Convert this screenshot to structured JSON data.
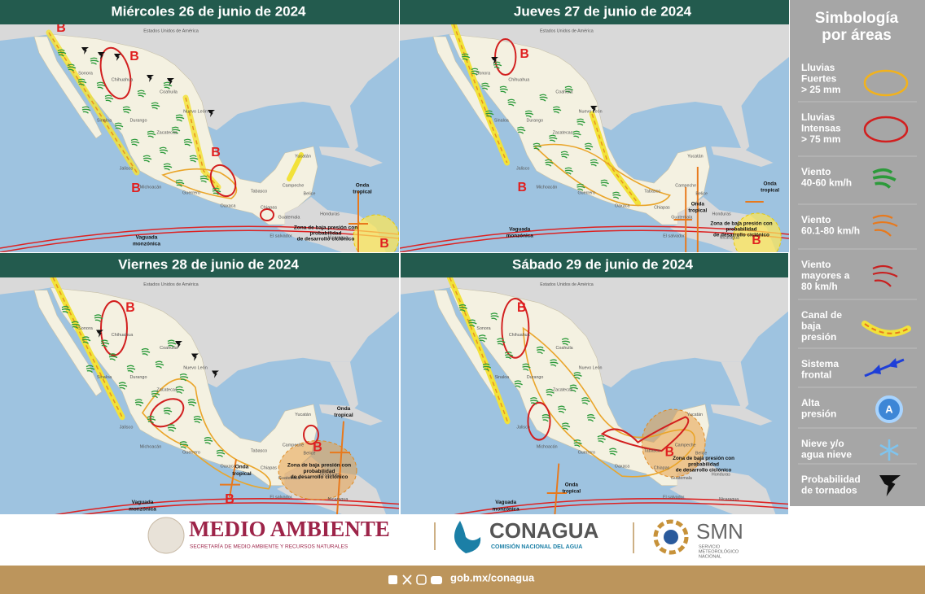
{
  "panels": [
    {
      "title": "Miércoles 26 de junio de 2024",
      "labels": [
        "B",
        "B",
        "B",
        "B",
        "B",
        "Onda",
        "tropical",
        "Vaguada",
        "monzónica",
        "Zona de baja presión con",
        "probabilidad",
        "de desarrollo ciclónico"
      ]
    },
    {
      "title": "Jueves 27 de junio de 2024",
      "labels": [
        "B",
        "B",
        "B",
        "Onda",
        "tropical",
        "Onda",
        "tropical",
        "Vaguada",
        "monzónica",
        "Zona de baja presión con",
        "probabilidad",
        "de desarrollo ciclónico"
      ]
    },
    {
      "title": "Viernes 28 de junio de 2024",
      "labels": [
        "B",
        "B",
        "B",
        "Onda",
        "tropical",
        "Onda",
        "tropical",
        "Vaguada",
        "monzónica",
        "Zona de baja presión con",
        "probabilidad",
        "de desarrollo ciclónico"
      ]
    },
    {
      "title": "Sábado 29 de junio de 2024",
      "labels": [
        "B",
        "B",
        "Onda",
        "tropical",
        "Vaguada",
        "monzónica",
        "Zona de baja presión con",
        "probabilidad",
        "de desarrollo ciclónico"
      ]
    }
  ],
  "place_names": [
    "Estados Unidos de América",
    "Sonora",
    "Chihuahua",
    "Coahuila",
    "Nuevo León",
    "Sinaloa",
    "Durango",
    "Zacatecas",
    "Jalisco",
    "Michoacán",
    "Guerrero",
    "Oaxaca",
    "Yucatán",
    "Campeche",
    "Tabasco",
    "Chiapas",
    "Belice",
    "Guatemala",
    "Honduras",
    "El salvador",
    "Nicaragua"
  ],
  "legend": {
    "title": [
      "Simbología",
      "por áreas"
    ],
    "items": [
      [
        "Lluvias",
        "Fuertes",
        "> 25 mm"
      ],
      [
        "Lluvias",
        "Intensas",
        "> 75 mm"
      ],
      [
        "Viento",
        "40-60 km/h"
      ],
      [
        "Viento",
        "60.1-80 km/h"
      ],
      [
        "Viento",
        "mayores a",
        "80 km/h"
      ],
      [
        "Canal de",
        "baja",
        "presión"
      ],
      [
        "Sistema",
        "frontal"
      ],
      [
        "Alta",
        "presión"
      ],
      [
        "Nieve y/o",
        "agua nieve"
      ],
      [
        "Probabilidad",
        "de tornados"
      ]
    ]
  },
  "footer": {
    "semarnat": "MEDIO AMBIENTE",
    "semarnat_sub": "SECRETARÍA DE MEDIO AMBIENTE Y RECURSOS NATURALES",
    "conagua": "CONAGUA",
    "conagua_sub": "COMISIÓN NACIONAL DEL AGUA",
    "smn": "SMN",
    "smn_sub": [
      "SERVICIO",
      "METEOROLÓGICO",
      "NACIONAL"
    ],
    "url": "gob.mx/conagua"
  }
}
